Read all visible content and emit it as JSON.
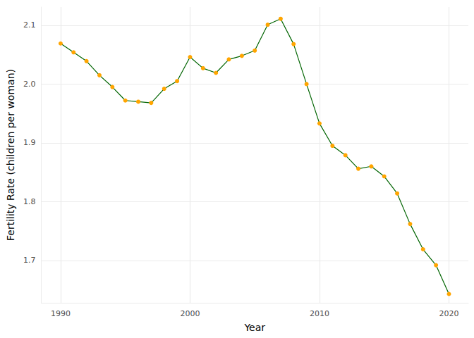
{
  "chart_data": {
    "type": "line",
    "x_label": "Year",
    "y_label": "Fertility Rate (children per woman)",
    "x": [
      1990,
      1991,
      1992,
      1993,
      1994,
      1995,
      1996,
      1997,
      1998,
      1999,
      2000,
      2001,
      2002,
      2003,
      2004,
      2005,
      2006,
      2007,
      2008,
      2009,
      2010,
      2011,
      2012,
      2013,
      2014,
      2015,
      2016,
      2017,
      2018,
      2019,
      2020
    ],
    "values": [
      2.069,
      2.054,
      2.039,
      2.015,
      1.995,
      1.972,
      1.97,
      1.968,
      1.992,
      2.005,
      2.046,
      2.027,
      2.019,
      2.042,
      2.048,
      2.057,
      2.101,
      2.111,
      2.068,
      2.0,
      1.933,
      1.895,
      1.879,
      1.856,
      1.86,
      1.843,
      1.814,
      1.762,
      1.719,
      1.692,
      1.643
    ],
    "color": "#006400",
    "marker": "circle",
    "xlim": [
      1988.5,
      2021.5
    ],
    "xticks": [
      1990,
      2000,
      2010,
      2020
    ],
    "ylim": [
      1.628,
      2.131
    ],
    "yticks": [
      1.7,
      1.8,
      1.9,
      {
        "value": 2,
        "label": "2.0"
      },
      2.1
    ],
    "grid": true
  }
}
